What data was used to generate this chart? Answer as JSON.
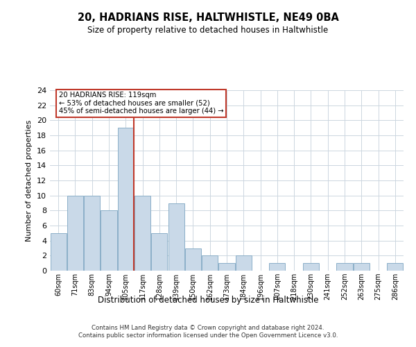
{
  "title1": "20, HADRIANS RISE, HALTWHISTLE, NE49 0BA",
  "title2": "Size of property relative to detached houses in Haltwhistle",
  "xlabel": "Distribution of detached houses by size in Haltwhistle",
  "ylabel": "Number of detached properties",
  "categories": [
    "60sqm",
    "71sqm",
    "83sqm",
    "94sqm",
    "105sqm",
    "117sqm",
    "128sqm",
    "139sqm",
    "150sqm",
    "162sqm",
    "173sqm",
    "184sqm",
    "196sqm",
    "207sqm",
    "218sqm",
    "230sqm",
    "241sqm",
    "252sqm",
    "263sqm",
    "275sqm",
    "286sqm"
  ],
  "values": [
    5,
    10,
    10,
    8,
    19,
    10,
    5,
    9,
    3,
    2,
    1,
    2,
    0,
    1,
    0,
    1,
    0,
    1,
    1,
    0,
    1
  ],
  "bar_color": "#c9d9e8",
  "bar_edge_color": "#8bafc8",
  "vline_bar_index": 4,
  "vline_color": "#c0392b",
  "annotation_text": "20 HADRIANS RISE: 119sqm\n← 53% of detached houses are smaller (52)\n45% of semi-detached houses are larger (44) →",
  "annotation_box_color": "#c0392b",
  "ylim": [
    0,
    24
  ],
  "yticks": [
    0,
    2,
    4,
    6,
    8,
    10,
    12,
    14,
    16,
    18,
    20,
    22,
    24
  ],
  "footer": "Contains HM Land Registry data © Crown copyright and database right 2024.\nContains public sector information licensed under the Open Government Licence v3.0.",
  "bg_color": "#ffffff",
  "grid_color": "#ccd6e0"
}
